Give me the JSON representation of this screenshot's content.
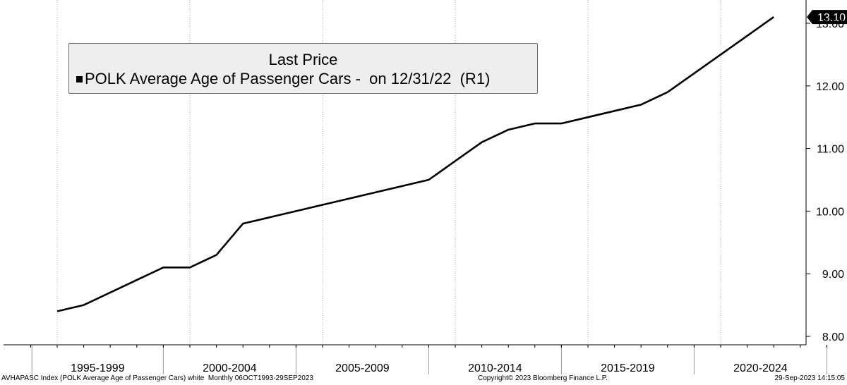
{
  "chart_data": {
    "type": "line",
    "title": "Last Price",
    "series": [
      {
        "name": "POLK Average Age of Passenger Cars -  on 12/31/22  (R1)",
        "color": "#000000",
        "x": [
          1995,
          1996,
          1997,
          1998,
          1999,
          2000,
          2001,
          2002,
          2003,
          2004,
          2005,
          2006,
          2007,
          2008,
          2009,
          2010,
          2011,
          2012,
          2013,
          2014,
          2015,
          2016,
          2017,
          2018,
          2019,
          2020,
          2021,
          2022
        ],
        "values": [
          8.4,
          8.5,
          8.7,
          8.9,
          9.1,
          9.1,
          9.3,
          9.8,
          9.9,
          10.0,
          10.1,
          10.2,
          10.3,
          10.4,
          10.5,
          10.8,
          11.1,
          11.3,
          11.4,
          11.4,
          11.5,
          11.6,
          11.7,
          11.9,
          12.2,
          12.5,
          12.8,
          13.1
        ]
      }
    ],
    "x_categories": [
      "1995-1999",
      "2000-2004",
      "2005-2009",
      "2010-2014",
      "2015-2019",
      "2020-2024"
    ],
    "xlim": [
      1994,
      2025
    ],
    "ylim": [
      8.0,
      13.4
    ],
    "yticks": [
      "8.00",
      "9.00",
      "10.00",
      "11.00",
      "12.00",
      "13.00"
    ],
    "y_axis_side": "right",
    "last_value_label": "13.10",
    "grid": "vertical dotted",
    "legend_position": "top-left"
  },
  "legend": {
    "title": "Last Price",
    "entry": "POLK Average Age of Passenger Cars -  on 12/31/22  (R1)"
  },
  "footer": {
    "left": "AVHAPASC Index (POLK Average Age of Passenger Cars) white  Monthly 06OCT1993-29SEP2023",
    "center": "Copyright© 2023 Bloomberg Finance L.P.",
    "right": "29-Sep-2023 14:15:05"
  }
}
